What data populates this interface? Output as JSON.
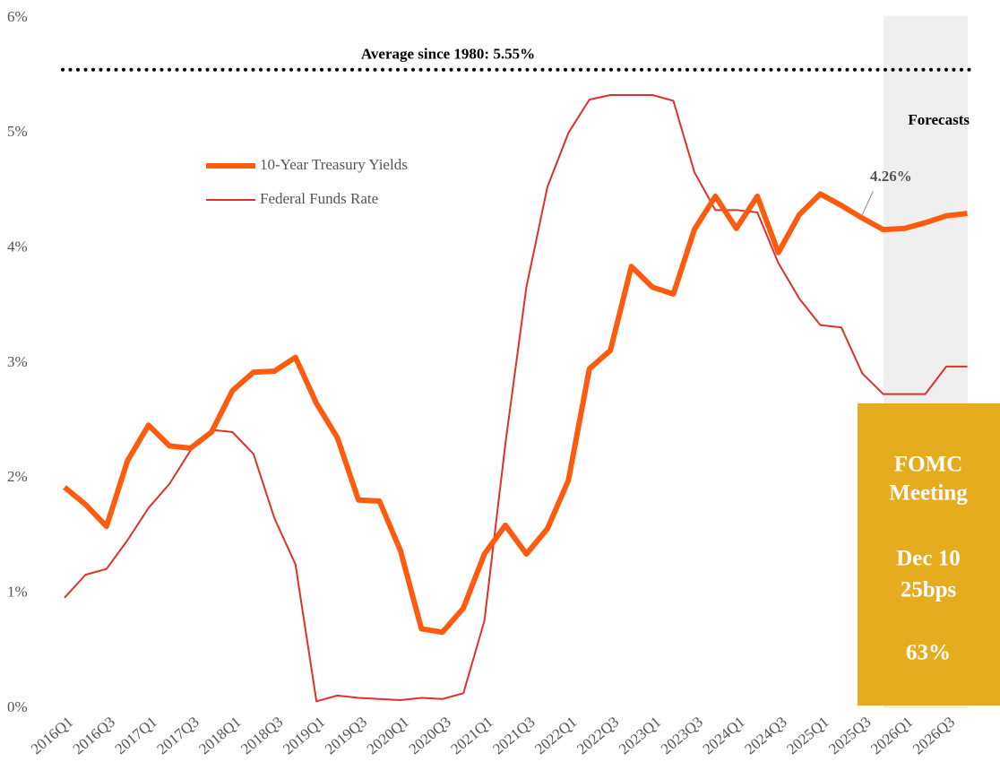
{
  "chart_data": {
    "type": "line",
    "categories": [
      "2016Q1",
      null,
      "2016Q3",
      null,
      "2017Q1",
      null,
      "2017Q3",
      null,
      "2018Q1",
      null,
      "2018Q3",
      null,
      "2019Q1",
      null,
      "2019Q3",
      null,
      "2020Q1",
      null,
      "2020Q3",
      null,
      "2021Q1",
      null,
      "2021Q3",
      null,
      "2022Q1",
      null,
      "2022Q3",
      null,
      "2023Q1",
      null,
      "2023Q3",
      null,
      "2024Q1",
      null,
      "2024Q3",
      null,
      "2025Q1",
      null,
      "2025Q3",
      null,
      "2026Q1",
      null,
      "2026Q3",
      null
    ],
    "series": [
      {
        "name": "10-Year Treasury Yields",
        "color": "#ff5b0f",
        "width": 6,
        "values": [
          1.92,
          1.77,
          1.58,
          2.15,
          2.46,
          2.28,
          2.26,
          2.4,
          2.76,
          2.92,
          2.93,
          3.05,
          2.65,
          2.35,
          1.81,
          1.8,
          1.37,
          0.69,
          0.66,
          0.87,
          1.34,
          1.59,
          1.34,
          1.56,
          1.98,
          2.95,
          3.11,
          3.84,
          3.66,
          3.6,
          4.16,
          4.45,
          4.17,
          4.45,
          3.96,
          4.29,
          4.47,
          4.37,
          4.26,
          4.16,
          4.17,
          4.22,
          4.28,
          4.3
        ],
        "value_labels": [
          null,
          null,
          null,
          null,
          null,
          null,
          null,
          null,
          null,
          null,
          null,
          null,
          null,
          null,
          null,
          null,
          null,
          null,
          null,
          null,
          null,
          null,
          null,
          null,
          null,
          null,
          null,
          null,
          null,
          null,
          null,
          null,
          null,
          null,
          null,
          null,
          null,
          null,
          "4.26%",
          null,
          null,
          null,
          null,
          null
        ]
      },
      {
        "name": "Federal Funds Rate",
        "color": "#e0302a",
        "width": 2,
        "values": [
          0.96,
          1.16,
          1.21,
          1.46,
          1.74,
          1.95,
          2.24,
          2.42,
          2.4,
          2.21,
          1.65,
          1.25,
          0.06,
          0.11,
          0.09,
          0.08,
          0.07,
          0.09,
          0.08,
          0.13,
          0.76,
          2.3,
          3.66,
          4.53,
          5.0,
          5.29,
          5.33,
          5.33,
          5.33,
          5.28,
          4.66,
          4.33,
          4.33,
          4.31,
          3.87,
          3.56,
          3.33,
          3.31,
          2.91,
          2.73,
          2.73,
          2.73,
          2.97,
          2.97
        ]
      }
    ],
    "ylim": [
      0,
      6
    ],
    "yticks": [
      {
        "value": 0,
        "label": "0%"
      },
      {
        "value": 1,
        "label": "1%"
      },
      {
        "value": 2,
        "label": "2%"
      },
      {
        "value": 3,
        "label": "3%"
      },
      {
        "value": 4,
        "label": "4%"
      },
      {
        "value": 5,
        "label": "5%"
      },
      {
        "value": 6,
        "label": "6%"
      }
    ],
    "average": {
      "value": 5.55,
      "label": "Average since 1980: 5.55%"
    },
    "forecast_label": "Forecasts",
    "callout": {
      "lines": [
        "FOMC",
        "Meeting",
        "Dec 10",
        "25bps",
        "63%"
      ]
    }
  }
}
